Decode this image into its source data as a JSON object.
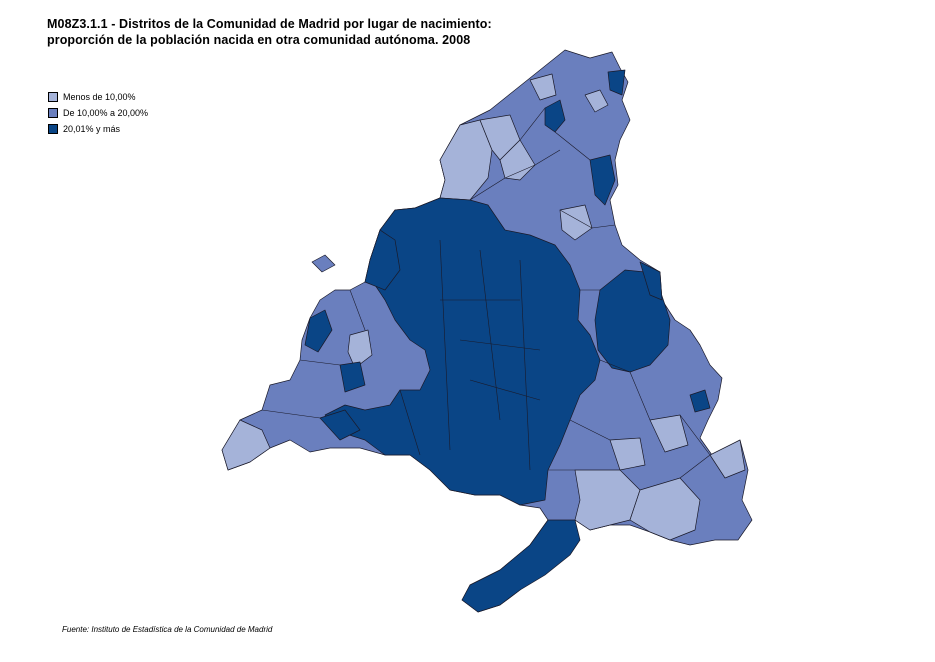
{
  "title": {
    "line1": "M08Z3.1.1 - Distritos de la Comunidad de Madrid por lugar de nacimiento:",
    "line2": "proporción de la población nacida en otra comunidad autónoma. 2008"
  },
  "legend": {
    "items": [
      {
        "label": "Menos de 10,00%",
        "color": "#a5b3d9"
      },
      {
        "label": "De 10,00% a 20,00%",
        "color": "#6a7fbe"
      },
      {
        "label": "20,01% y más",
        "color": "#0a4586"
      }
    ]
  },
  "source": "Fuente: Instituto de Estadística de la Comunidad de Madrid",
  "map": {
    "region": "Comunidad de Madrid",
    "categories": [
      "low",
      "mid",
      "high"
    ]
  }
}
